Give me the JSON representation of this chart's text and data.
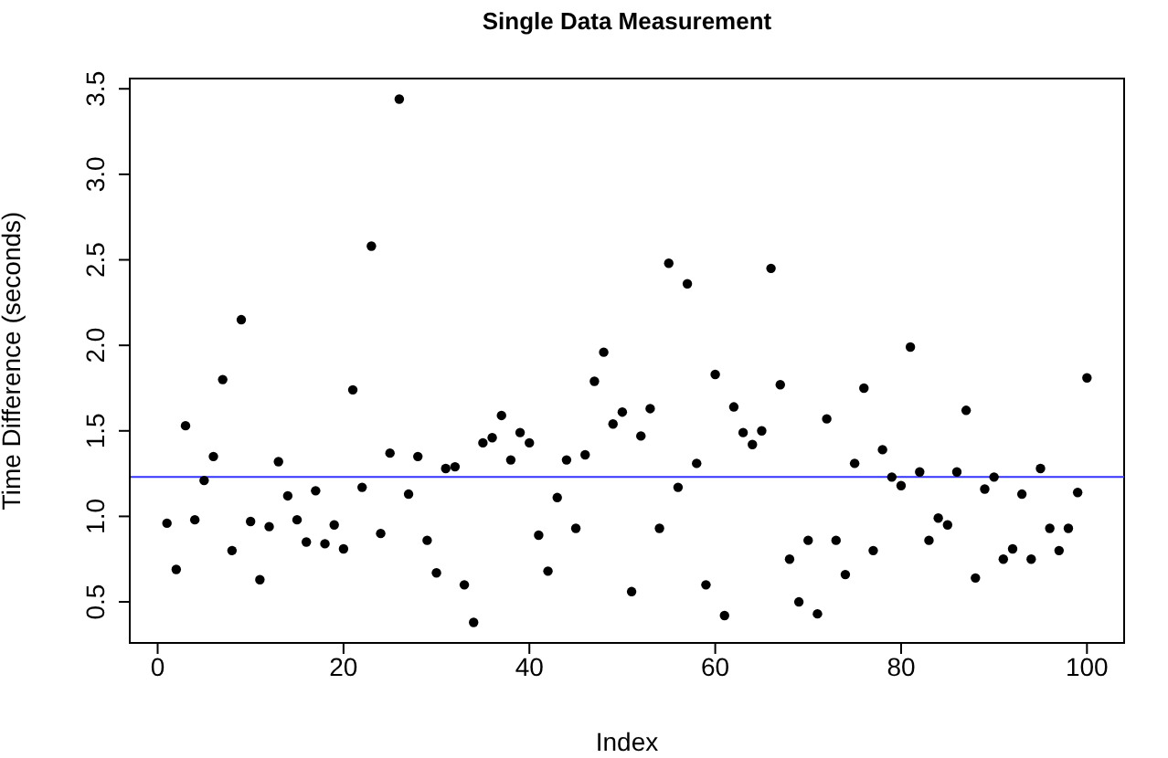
{
  "chart_data": {
    "type": "scatter",
    "title": "Single Data Measurement",
    "xlabel": "Index",
    "ylabel": "Time Difference (seconds)",
    "x": [
      1,
      2,
      3,
      4,
      5,
      6,
      7,
      8,
      9,
      10,
      11,
      12,
      13,
      14,
      15,
      16,
      17,
      18,
      19,
      20,
      21,
      22,
      23,
      24,
      25,
      26,
      27,
      28,
      29,
      30,
      31,
      32,
      33,
      34,
      35,
      36,
      37,
      38,
      39,
      40,
      41,
      42,
      43,
      44,
      45,
      46,
      47,
      48,
      49,
      50,
      51,
      52,
      53,
      54,
      55,
      56,
      57,
      58,
      59,
      60,
      61,
      62,
      63,
      64,
      65,
      66,
      67,
      68,
      69,
      70,
      71,
      72,
      73,
      74,
      75,
      76,
      77,
      78,
      79,
      80,
      81,
      82,
      83,
      84,
      85,
      86,
      87,
      88,
      89,
      90,
      91,
      92,
      93,
      94,
      95,
      96,
      97,
      98,
      99,
      100
    ],
    "series": [
      {
        "color": "#000000",
        "values": [
          0.96,
          0.69,
          1.53,
          0.98,
          1.21,
          1.35,
          1.8,
          0.8,
          2.15,
          0.97,
          0.63,
          0.94,
          1.32,
          1.12,
          0.98,
          0.85,
          1.15,
          0.84,
          0.95,
          0.81,
          1.74,
          1.17,
          2.58,
          0.9,
          1.37,
          3.44,
          1.13,
          1.35,
          0.86,
          0.67,
          1.28,
          1.29,
          0.6,
          0.38,
          1.43,
          1.46,
          1.59,
          1.33,
          1.49,
          1.43,
          0.89,
          0.68,
          1.11,
          1.33,
          0.93,
          1.36,
          1.79,
          1.96,
          1.54,
          1.61,
          0.56,
          1.47,
          1.63,
          0.93,
          2.48,
          1.17,
          2.36,
          1.31,
          0.6,
          1.83,
          0.42,
          1.64,
          1.49,
          1.42,
          1.5,
          2.45,
          1.77,
          0.75,
          0.5,
          0.86,
          0.43,
          1.57,
          0.86,
          0.66,
          1.31,
          1.75,
          0.8,
          1.39,
          1.23,
          1.18,
          1.99,
          1.26,
          0.86,
          0.99,
          0.95,
          1.26,
          1.62,
          0.64,
          1.16,
          1.23,
          0.75,
          0.81,
          1.13,
          0.75,
          1.28,
          0.93,
          0.8,
          0.93,
          1.14,
          1.81
        ]
      }
    ],
    "marker": "circle",
    "xlim": [
      -3,
      104
    ],
    "xticks": [
      0,
      20,
      40,
      60,
      80,
      100
    ],
    "ylim": [
      0.26,
      3.56
    ],
    "yticks": [
      0.5,
      {
        "value": 1,
        "label": "1.0"
      },
      1.5,
      {
        "value": 2,
        "label": "2.0"
      },
      2.5,
      {
        "value": 3,
        "label": "3.0"
      },
      3.5
    ],
    "ref_lines": [
      {
        "axis": "y",
        "value": 1.23,
        "color": "#3333ff"
      }
    ]
  }
}
